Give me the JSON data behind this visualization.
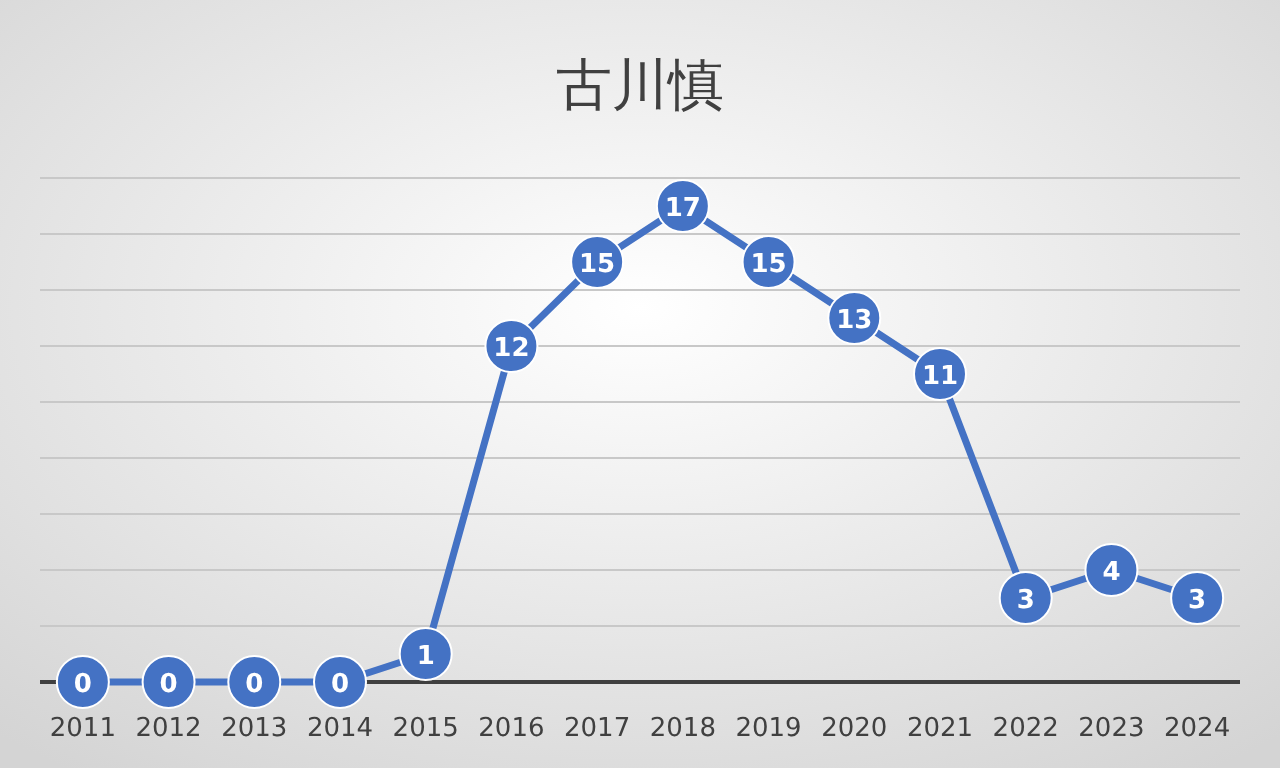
{
  "chart_data": {
    "type": "line",
    "title": "古川慎",
    "categories": [
      "2011",
      "2012",
      "2013",
      "2014",
      "2015",
      "2016",
      "2017",
      "2018",
      "2019",
      "2020",
      "2021",
      "2022",
      "2023",
      "2024"
    ],
    "series": [
      {
        "color": "#4472c4",
        "values": [
          0,
          0,
          0,
          0,
          1,
          12,
          15,
          17,
          15,
          13,
          11,
          3,
          4,
          3
        ]
      }
    ],
    "ylim": [
      0,
      18
    ],
    "yticks": [
      {
        "value": 0,
        "label": null
      },
      {
        "value": 2,
        "label": null
      },
      {
        "value": 4,
        "label": null
      },
      {
        "value": 6,
        "label": null
      },
      {
        "value": 8,
        "label": null
      },
      {
        "value": 10,
        "label": null
      },
      {
        "value": 12,
        "label": null
      },
      {
        "value": 14,
        "label": null
      },
      {
        "value": 16,
        "label": null
      },
      {
        "value": 18,
        "label": null
      }
    ],
    "tick_labels": "x",
    "grid": "y",
    "marker": "circle",
    "data_labels": true
  }
}
